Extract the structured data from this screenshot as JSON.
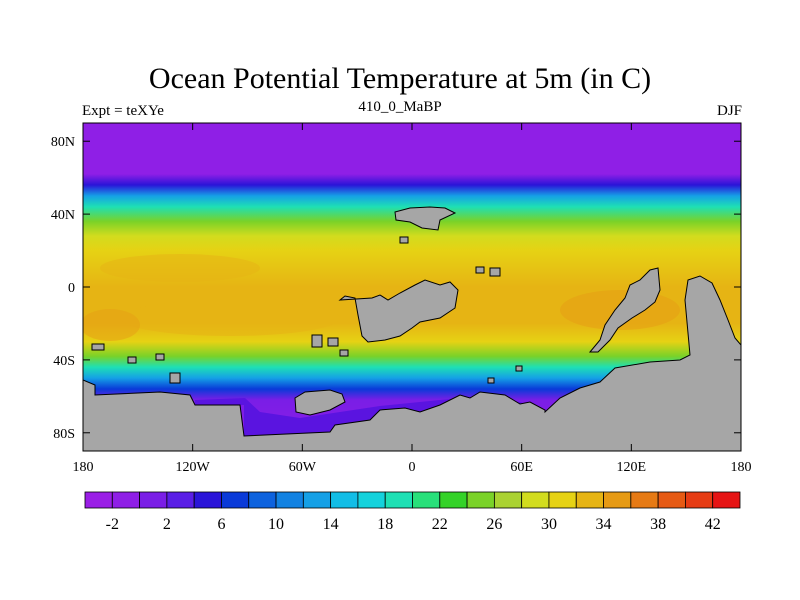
{
  "title": "Ocean Potential Temperature at 5m (in C)",
  "left_label": "Expt = teXYe",
  "center_label": "410_0_MaBP",
  "right_label": "DJF",
  "chart_data": {
    "type": "heatmap",
    "title": "Ocean Potential Temperature at 5m (in C)",
    "xlim": [
      -180,
      180
    ],
    "ylim": [
      -90,
      90
    ],
    "x_ticks": [
      {
        "value": -180,
        "label": "180"
      },
      {
        "value": -120,
        "label": "120W"
      },
      {
        "value": -60,
        "label": "60W"
      },
      {
        "value": 0,
        "label": "0"
      },
      {
        "value": 60,
        "label": "60E"
      },
      {
        "value": 120,
        "label": "120E"
      },
      {
        "value": 180,
        "label": "180"
      }
    ],
    "y_ticks": [
      {
        "value": 80,
        "label": "80N"
      },
      {
        "value": 40,
        "label": "40N"
      },
      {
        "value": 0,
        "label": "0"
      },
      {
        "value": -40,
        "label": "40S"
      },
      {
        "value": -80,
        "label": "80S"
      }
    ],
    "land_color": "#a6a6a6",
    "colorbar": {
      "levels": [
        -4,
        -2,
        0,
        2,
        4,
        6,
        8,
        10,
        12,
        14,
        16,
        18,
        20,
        22,
        24,
        26,
        28,
        30,
        32,
        34,
        36,
        38,
        40,
        42,
        44
      ],
      "labeled_values": [
        "-2",
        "2",
        "6",
        "10",
        "14",
        "18",
        "22",
        "26",
        "30",
        "34",
        "38",
        "42"
      ],
      "colors": [
        "#9a1ee6",
        "#8f1fe6",
        "#7a1ee6",
        "#5a1ee6",
        "#2a14d8",
        "#0a3ad8",
        "#0d62de",
        "#1282e2",
        "#15a0e6",
        "#12bde6",
        "#14d2dc",
        "#1ee0b4",
        "#28e07a",
        "#34d228",
        "#7ad228",
        "#aad232",
        "#d2dc1e",
        "#e6d214",
        "#e6b414",
        "#e69a14",
        "#e67a14",
        "#e65a14",
        "#e63c14",
        "#e61414"
      ]
    },
    "temperature_profile_by_latitude": [
      {
        "lat": 90,
        "temp": -1.8
      },
      {
        "lat": 62,
        "temp": -1.5
      },
      {
        "lat": 56,
        "temp": 5
      },
      {
        "lat": 50,
        "temp": 13
      },
      {
        "lat": 44,
        "temp": 18
      },
      {
        "lat": 36,
        "temp": 24
      },
      {
        "lat": 28,
        "temp": 29
      },
      {
        "lat": 20,
        "temp": 31
      },
      {
        "lat": 0,
        "temp": 32
      },
      {
        "lat": -20,
        "temp": 32
      },
      {
        "lat": -30,
        "temp": 30
      },
      {
        "lat": -38,
        "temp": 24
      },
      {
        "lat": -44,
        "temp": 18
      },
      {
        "lat": -50,
        "temp": 12
      },
      {
        "lat": -56,
        "temp": 6
      },
      {
        "lat": -62,
        "temp": 1
      },
      {
        "lat": -90,
        "temp": -1.8
      }
    ]
  }
}
